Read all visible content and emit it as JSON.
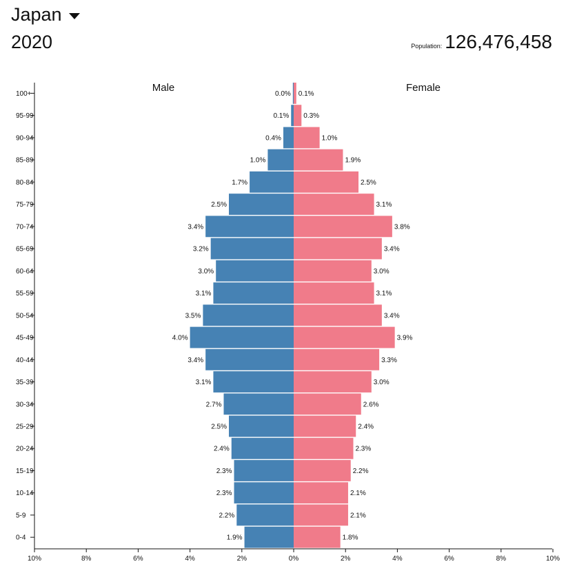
{
  "header": {
    "country": "Japan",
    "dropdown_icon": "caret-down-icon",
    "year": "2020",
    "population_label": "Population:",
    "population_value": "126,476,458"
  },
  "chart_data": {
    "type": "bar",
    "orientation": "horizontal-pyramid",
    "categories": [
      "100+",
      "95-99",
      "90-94",
      "85-89",
      "80-84",
      "75-79",
      "70-74",
      "65-69",
      "60-64",
      "55-59",
      "50-54",
      "45-49",
      "40-44",
      "35-39",
      "30-34",
      "25-29",
      "20-24",
      "15-19",
      "10-14",
      "5-9",
      "0-4"
    ],
    "series": [
      {
        "name": "Male",
        "color": "#4682b4",
        "values": [
          0.0,
          0.1,
          0.4,
          1.0,
          1.7,
          2.5,
          3.4,
          3.2,
          3.0,
          3.1,
          3.5,
          4.0,
          3.4,
          3.1,
          2.7,
          2.5,
          2.4,
          2.3,
          2.3,
          2.2,
          1.9
        ],
        "labels": [
          "0.0%",
          "0.1%",
          "0.4%",
          "1.0%",
          "1.7%",
          "2.5%",
          "3.4%",
          "3.2%",
          "3.0%",
          "3.1%",
          "3.5%",
          "4.0%",
          "3.4%",
          "3.1%",
          "2.7%",
          "2.5%",
          "2.4%",
          "2.3%",
          "2.3%",
          "2.2%",
          "1.9%"
        ]
      },
      {
        "name": "Female",
        "color": "#f07b8a",
        "values": [
          0.1,
          0.3,
          1.0,
          1.9,
          2.5,
          3.1,
          3.8,
          3.4,
          3.0,
          3.1,
          3.4,
          3.9,
          3.3,
          3.0,
          2.6,
          2.4,
          2.3,
          2.2,
          2.1,
          2.1,
          1.8
        ],
        "labels": [
          "0.1%",
          "0.3%",
          "1.0%",
          "1.9%",
          "2.5%",
          "3.1%",
          "3.8%",
          "3.4%",
          "3.0%",
          "3.1%",
          "3.4%",
          "3.9%",
          "3.3%",
          "3.0%",
          "2.6%",
          "2.4%",
          "2.3%",
          "2.2%",
          "2.1%",
          "2.1%",
          "1.8%"
        ]
      }
    ],
    "xlim": [
      -10,
      10
    ],
    "x_ticks": [
      -10,
      -8,
      -6,
      -4,
      -2,
      0,
      2,
      4,
      6,
      8,
      10
    ],
    "x_tick_labels": [
      "10%",
      "8%",
      "6%",
      "4%",
      "2%",
      "0%",
      "2%",
      "4%",
      "6%",
      "8%",
      "10%"
    ],
    "grid": false
  }
}
